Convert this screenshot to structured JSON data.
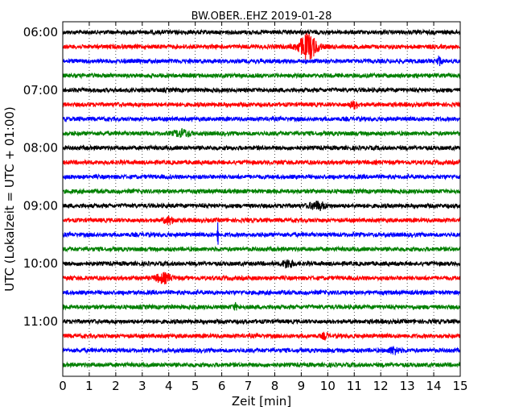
{
  "chart_data": {
    "type": "line",
    "title": "BW.OBER..EHZ 2019-01-28",
    "xlabel": "Zeit  [min]",
    "ylabel": "UTC (Lokalzeit = UTC + 01:00)",
    "xlim": [
      0,
      15
    ],
    "x_ticks": [
      "0",
      "1",
      "2",
      "3",
      "4",
      "5",
      "6",
      "7",
      "8",
      "9",
      "10",
      "11",
      "12",
      "13",
      "14",
      "15"
    ],
    "y_ticks": [
      "06:00",
      "07:00",
      "08:00",
      "09:00",
      "10:00",
      "11:00"
    ],
    "grid": true,
    "trace_interval_min": 15,
    "color_cycle": [
      "#000000",
      "#ff0000",
      "#0000ff",
      "#008000"
    ],
    "traces": [
      {
        "start": "06:00",
        "events": []
      },
      {
        "start": "06:15",
        "events": [
          {
            "t": 9.25,
            "amp": 1.0,
            "width": 0.35
          }
        ]
      },
      {
        "start": "06:30",
        "events": [
          {
            "t": 14.2,
            "amp": 0.3,
            "width": 0.1
          }
        ]
      },
      {
        "start": "06:45",
        "events": []
      },
      {
        "start": "07:00",
        "events": []
      },
      {
        "start": "07:15",
        "events": [
          {
            "t": 11.0,
            "amp": 0.25,
            "width": 0.15
          }
        ]
      },
      {
        "start": "07:30",
        "events": []
      },
      {
        "start": "07:45",
        "events": [
          {
            "t": 4.5,
            "amp": 0.25,
            "width": 0.3
          }
        ]
      },
      {
        "start": "08:00",
        "events": []
      },
      {
        "start": "08:15",
        "events": []
      },
      {
        "start": "08:30",
        "events": []
      },
      {
        "start": "08:45",
        "events": []
      },
      {
        "start": "09:00",
        "events": [
          {
            "t": 9.6,
            "amp": 0.3,
            "width": 0.3
          }
        ]
      },
      {
        "start": "09:15",
        "events": [
          {
            "t": 4.0,
            "amp": 0.25,
            "width": 0.2
          }
        ]
      },
      {
        "start": "09:30",
        "events": [
          {
            "t": 5.85,
            "amp": 1.0,
            "width": 0.02
          }
        ]
      },
      {
        "start": "09:45",
        "events": []
      },
      {
        "start": "10:00",
        "events": [
          {
            "t": 8.5,
            "amp": 0.3,
            "width": 0.2
          }
        ]
      },
      {
        "start": "10:15",
        "events": [
          {
            "t": 3.8,
            "amp": 0.35,
            "width": 0.3
          }
        ]
      },
      {
        "start": "10:30",
        "events": []
      },
      {
        "start": "10:45",
        "events": [
          {
            "t": 6.5,
            "amp": 0.2,
            "width": 0.1
          }
        ]
      },
      {
        "start": "11:00",
        "events": []
      },
      {
        "start": "11:15",
        "events": [
          {
            "t": 9.9,
            "amp": 0.25,
            "width": 0.1
          }
        ]
      },
      {
        "start": "11:30",
        "events": [
          {
            "t": 12.5,
            "amp": 0.25,
            "width": 0.2
          }
        ]
      },
      {
        "start": "11:45",
        "events": []
      }
    ]
  }
}
